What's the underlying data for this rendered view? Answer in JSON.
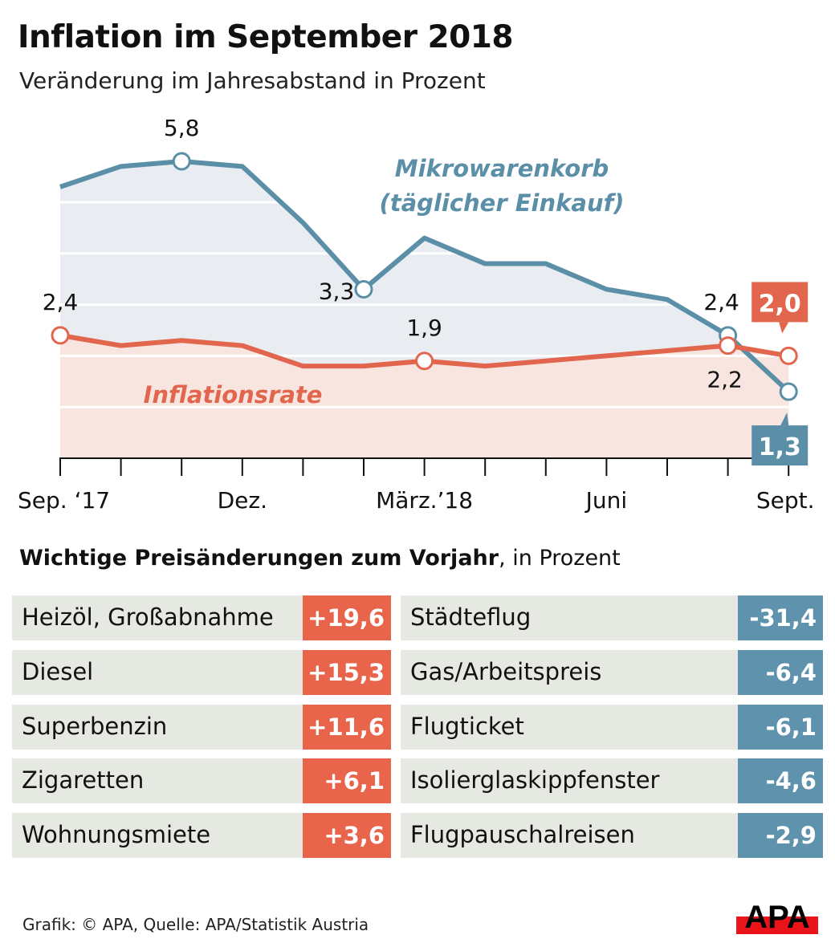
{
  "title": "Inflation im September 2018",
  "subtitle": "Veränderung im Jahresabstand in Prozent",
  "chart_data": {
    "type": "area",
    "x": [
      "Sep. 2017",
      "Okt. 2017",
      "Nov. 2017",
      "Dez. 2017",
      "Jan. 2018",
      "Feb. 2018",
      "März 2018",
      "Apr. 2018",
      "Mai 2018",
      "Juni 2018",
      "Juli 2018",
      "Aug. 2018",
      "Sept. 2018"
    ],
    "tick_labels": [
      {
        "index": 0,
        "label": "Sep. ‘17"
      },
      {
        "index": 3,
        "label": "Dez."
      },
      {
        "index": 6,
        "label": "März.’18"
      },
      {
        "index": 9,
        "label": "Juni"
      },
      {
        "index": 12,
        "label": "Sept."
      }
    ],
    "ylim": [
      0,
      6
    ],
    "grid": true,
    "series": [
      {
        "name": "Mikrowarenkorb (täglicher Einkauf)",
        "name_lines": [
          "Mikrowarenkorb",
          "(täglicher Einkauf)"
        ],
        "color": "#5b8fa8",
        "fill": "#e9ecf1",
        "values": [
          5.3,
          5.7,
          5.8,
          5.7,
          4.6,
          3.3,
          4.3,
          3.8,
          3.8,
          3.3,
          3.1,
          2.4,
          1.3
        ],
        "labels": [
          {
            "index": 2,
            "text": "5,8"
          },
          {
            "index": 5,
            "text": "3,3"
          },
          {
            "index": 11,
            "text": "2,4"
          },
          {
            "index": 12,
            "text": "1,3",
            "boxed": true
          }
        ]
      },
      {
        "name": "Inflationsrate",
        "name_lines": [
          "Inflationsrate"
        ],
        "color": "#e2664e",
        "fill": "#f8e5df",
        "values": [
          2.4,
          2.2,
          2.3,
          2.2,
          1.8,
          1.8,
          1.9,
          1.8,
          1.9,
          2.0,
          2.1,
          2.2,
          2.0
        ],
        "labels": [
          {
            "index": 0,
            "text": "2,4"
          },
          {
            "index": 6,
            "text": "1,9"
          },
          {
            "index": 11,
            "text": "2,2"
          },
          {
            "index": 12,
            "text": "2,0",
            "boxed": true
          }
        ]
      }
    ]
  },
  "table": {
    "heading_bold": "Wichtige Preisänderungen zum Vorjahr",
    "heading_rest": ", in Prozent",
    "increases": [
      {
        "label": "Heizöl, Großabnahme",
        "value": "+19,6"
      },
      {
        "label": "Diesel",
        "value": "+15,3"
      },
      {
        "label": "Superbenzin",
        "value": "+11,6"
      },
      {
        "label": "Zigaretten",
        "value": "+6,1"
      },
      {
        "label": "Wohnungsmiete",
        "value": "+3,6"
      }
    ],
    "decreases": [
      {
        "label": "Städteflug",
        "value": "-31,4"
      },
      {
        "label": "Gas/Arbeitspreis",
        "value": "-6,4"
      },
      {
        "label": "Flugticket",
        "value": "-6,1"
      },
      {
        "label": "Isolierglaskippfenster",
        "value": "-4,6"
      },
      {
        "label": "Flugpauschalreisen",
        "value": "-2,9"
      }
    ],
    "increase_color": "#e8654b",
    "decrease_color": "#5f93ad"
  },
  "footer": "Grafik: © APA, Quelle: APA/Statistik Austria",
  "logo": "APA"
}
